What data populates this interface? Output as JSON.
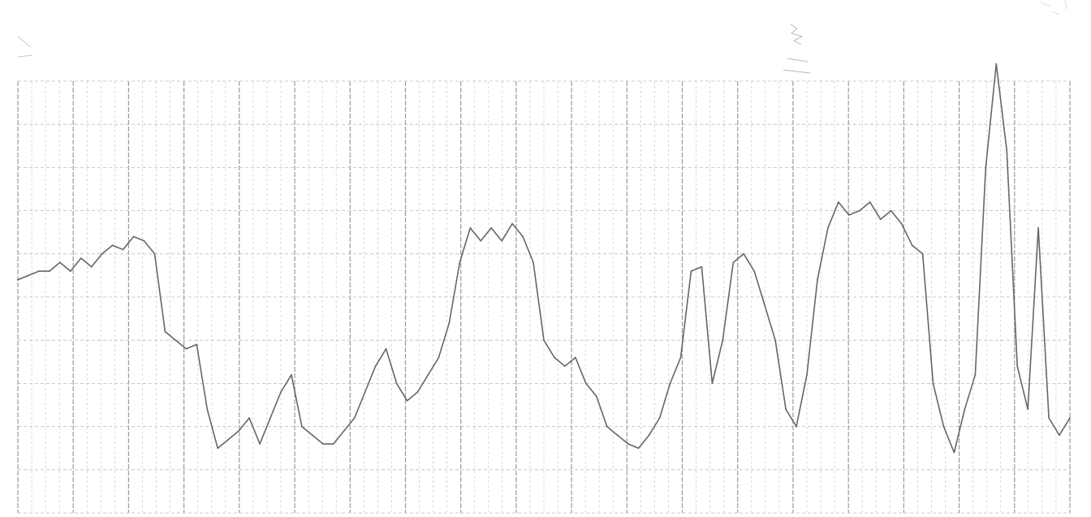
{
  "chart_data": {
    "type": "line",
    "title": "",
    "xlabel": "",
    "ylabel": "",
    "grid": true,
    "legend": "none",
    "xlim": [
      0,
      100
    ],
    "ylim": [
      0,
      100
    ],
    "series": [
      {
        "color": "#666666",
        "x": [
          0,
          1,
          2,
          3,
          4,
          5,
          6,
          7,
          8,
          9,
          10,
          11,
          12,
          13,
          14,
          15,
          16,
          17,
          18,
          19,
          20,
          21,
          22,
          23,
          24,
          25,
          26,
          27,
          28,
          29,
          30,
          31,
          32,
          33,
          34,
          35,
          36,
          37,
          38,
          39,
          40,
          41,
          42,
          43,
          44,
          45,
          46,
          47,
          48,
          49,
          50,
          51,
          52,
          53,
          54,
          55,
          56,
          57,
          58,
          59,
          60,
          61,
          62,
          63,
          64,
          65,
          66,
          67,
          68,
          69,
          70,
          71,
          72,
          73,
          74,
          75,
          76,
          77,
          78,
          79,
          80,
          81,
          82,
          83,
          84,
          85,
          86,
          87,
          88,
          89,
          90,
          91,
          92,
          93,
          94,
          95,
          96,
          97,
          98,
          99,
          100
        ],
        "y": [
          54,
          55,
          56,
          56,
          58,
          56,
          59,
          57,
          60,
          62,
          61,
          64,
          63,
          60,
          42,
          40,
          38,
          39,
          24,
          15,
          17,
          19,
          22,
          16,
          22,
          28,
          32,
          20,
          18,
          16,
          16,
          19,
          22,
          28,
          34,
          38,
          30,
          26,
          28,
          32,
          36,
          44,
          58,
          66,
          63,
          66,
          63,
          67,
          64,
          58,
          40,
          36,
          34,
          36,
          30,
          27,
          20,
          18,
          16,
          15,
          18,
          22,
          30,
          36,
          56,
          57,
          30,
          40,
          58,
          60,
          56,
          48,
          40,
          24,
          20,
          32,
          54,
          66,
          72,
          69,
          70,
          72,
          68,
          70,
          67,
          62,
          60,
          30,
          20,
          14,
          24,
          32,
          80,
          104,
          84,
          34,
          24,
          66,
          22,
          18,
          22
        ]
      }
    ]
  }
}
